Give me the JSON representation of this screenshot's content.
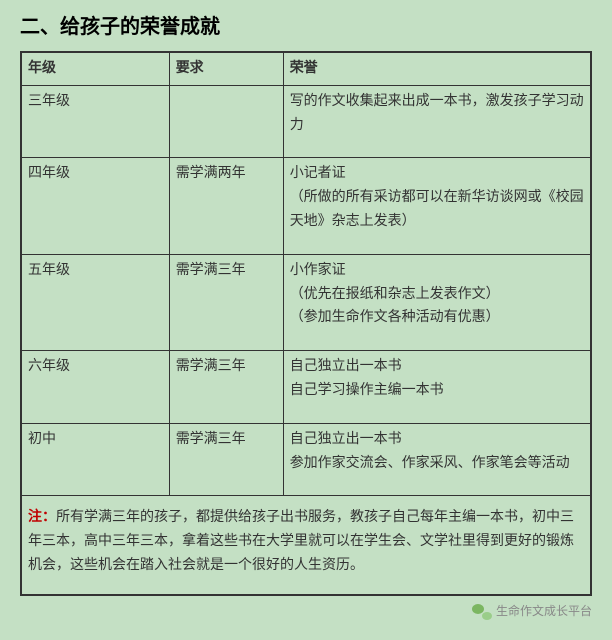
{
  "title": "二、给孩子的荣誉成就",
  "columns": [
    "年级",
    "要求",
    "荣誉"
  ],
  "rows": [
    {
      "grade": "三年级",
      "req": "",
      "honor": "写的作文收集起来出成一本书，激发孩子学习动力"
    },
    {
      "grade": "四年级",
      "req": "需学满两年",
      "honor": "小记者证\n（所做的所有采访都可以在新华访谈网或《校园天地》杂志上发表）"
    },
    {
      "grade": "五年级",
      "req": "需学满三年",
      "honor": "小作家证\n（优先在报纸和杂志上发表作文）\n（参加生命作文各种活动有优惠）"
    },
    {
      "grade": "六年级",
      "req": "需学满三年",
      "honor": "自己独立出一本书\n自己学习操作主编一本书"
    },
    {
      "grade": "初中",
      "req": "需学满三年",
      "honor": "自己独立出一本书\n参加作家交流会、作家采风、作家笔会等活动"
    }
  ],
  "note_label": "注：",
  "note_text": "所有学满三年的孩子，都提供给孩子出书服务，教孩子自己每年主编一本书，初中三年三本，高中三年三本，拿着这些书在大学里就可以在学生会、文学社里得到更好的锻炼机会，这些机会在踏入社会就是一个很好的人生资历。",
  "footer": {
    "account": "生命作文成长平台"
  },
  "colors": {
    "background": "#c4e0c4",
    "border": "#333333",
    "text": "#333333",
    "note_label": "#c00000",
    "footer_text": "#888888"
  },
  "font": {
    "family": "SimSun",
    "title_size": 20,
    "body_size": 14,
    "footer_size": 12
  }
}
